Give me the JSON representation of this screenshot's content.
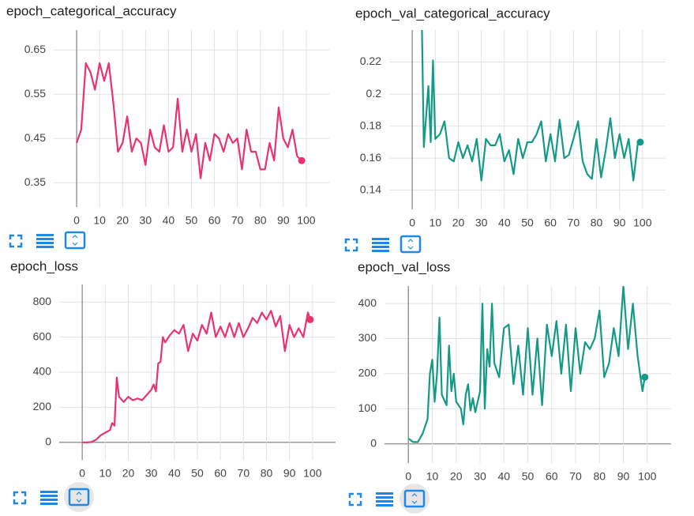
{
  "chart_data": [
    {
      "type": "line",
      "title": "epoch_categorical_accuracy",
      "xlim": [
        -10,
        110
      ],
      "xticks": [
        0,
        10,
        20,
        30,
        40,
        50,
        60,
        70,
        80,
        90,
        100
      ],
      "ylim": [
        0.295,
        0.695
      ],
      "yticks": [
        0.35,
        0.45,
        0.55,
        0.65
      ],
      "grid": true,
      "x": [
        0,
        2,
        4,
        6,
        8,
        10,
        12,
        14,
        16,
        18,
        20,
        22,
        24,
        26,
        28,
        30,
        32,
        34,
        36,
        38,
        40,
        42,
        44,
        46,
        48,
        50,
        52,
        54,
        56,
        58,
        60,
        62,
        64,
        66,
        68,
        70,
        72,
        74,
        76,
        78,
        80,
        82,
        84,
        86,
        88,
        90,
        92,
        94,
        96,
        98
      ],
      "series": [
        {
          "name": "epoch_categorical_accuracy",
          "color": "#e8336d",
          "values": [
            0.44,
            0.47,
            0.62,
            0.6,
            0.56,
            0.62,
            0.58,
            0.62,
            0.53,
            0.42,
            0.44,
            0.5,
            0.42,
            0.45,
            0.44,
            0.39,
            0.47,
            0.43,
            0.42,
            0.48,
            0.42,
            0.43,
            0.54,
            0.42,
            0.47,
            0.42,
            0.46,
            0.36,
            0.44,
            0.4,
            0.46,
            0.45,
            0.42,
            0.46,
            0.44,
            0.45,
            0.38,
            0.47,
            0.42,
            0.42,
            0.38,
            0.38,
            0.44,
            0.4,
            0.52,
            0.45,
            0.43,
            0.47,
            0.41,
            0.4
          ]
        }
      ]
    },
    {
      "type": "line",
      "title": "epoch_val_categorical_accuracy",
      "xlim": [
        -10,
        110
      ],
      "xticks": [
        0,
        10,
        20,
        30,
        40,
        50,
        60,
        70,
        80,
        90,
        100
      ],
      "ylim": [
        0.128,
        0.24
      ],
      "yticks": [
        0.14,
        0.16,
        0.18,
        0.2,
        0.22
      ],
      "grid": true,
      "x": [
        4,
        5,
        7,
        8,
        9,
        10,
        12,
        14,
        16,
        18,
        20,
        22,
        24,
        26,
        28,
        30,
        32,
        34,
        36,
        38,
        40,
        42,
        44,
        46,
        48,
        50,
        52,
        54,
        56,
        58,
        60,
        62,
        64,
        66,
        68,
        70,
        72,
        74,
        76,
        78,
        80,
        82,
        84,
        86,
        88,
        90,
        92,
        94,
        96,
        98,
        99
      ],
      "series": [
        {
          "name": "epoch_val_categorical_accuracy",
          "color": "#139a86",
          "values": [
            0.26,
            0.167,
            0.205,
            0.17,
            0.221,
            0.172,
            0.175,
            0.183,
            0.16,
            0.158,
            0.17,
            0.16,
            0.168,
            0.158,
            0.172,
            0.146,
            0.172,
            0.168,
            0.168,
            0.175,
            0.158,
            0.165,
            0.15,
            0.172,
            0.16,
            0.17,
            0.17,
            0.175,
            0.183,
            0.158,
            0.175,
            0.158,
            0.184,
            0.16,
            0.162,
            0.172,
            0.183,
            0.158,
            0.15,
            0.147,
            0.172,
            0.148,
            0.165,
            0.185,
            0.16,
            0.175,
            0.16,
            0.172,
            0.146,
            0.17,
            0.17
          ]
        }
      ]
    },
    {
      "type": "line",
      "title": "epoch_loss",
      "xlim": [
        -10,
        110
      ],
      "xticks": [
        0,
        10,
        20,
        30,
        40,
        50,
        60,
        70,
        80,
        90,
        100
      ],
      "ylim": [
        -100,
        900
      ],
      "yticks": [
        0,
        200,
        400,
        600,
        800
      ],
      "grid": true,
      "x": [
        0,
        2,
        4,
        6,
        8,
        10,
        12,
        13,
        14,
        15,
        16,
        18,
        20,
        22,
        24,
        26,
        28,
        30,
        31,
        32,
        33,
        34,
        35,
        36,
        38,
        40,
        42,
        44,
        46,
        48,
        50,
        52,
        54,
        56,
        58,
        60,
        62,
        64,
        66,
        68,
        70,
        72,
        74,
        76,
        78,
        80,
        82,
        84,
        86,
        88,
        90,
        92,
        94,
        96,
        98,
        99
      ],
      "series": [
        {
          "name": "epoch_loss",
          "color": "#e8336d",
          "values": [
            0,
            0,
            2,
            15,
            40,
            55,
            70,
            110,
            95,
            370,
            260,
            230,
            260,
            240,
            250,
            240,
            270,
            300,
            330,
            290,
            450,
            460,
            600,
            570,
            610,
            640,
            620,
            670,
            520,
            620,
            580,
            670,
            620,
            740,
            600,
            660,
            600,
            680,
            600,
            680,
            600,
            650,
            710,
            680,
            740,
            700,
            750,
            660,
            720,
            520,
            670,
            600,
            650,
            600,
            740,
            700
          ]
        }
      ]
    },
    {
      "type": "line",
      "title": "epoch_val_loss",
      "xlim": [
        -10,
        110
      ],
      "xticks": [
        0,
        10,
        20,
        30,
        40,
        50,
        60,
        70,
        80,
        90,
        100
      ],
      "ylim": [
        -55,
        450
      ],
      "yticks": [
        0,
        100,
        200,
        300,
        400
      ],
      "grid": true,
      "x": [
        0,
        2,
        4,
        6,
        8,
        9,
        10,
        11,
        12,
        13,
        14,
        16,
        17,
        18,
        19,
        20,
        22,
        23,
        24,
        25,
        26,
        27,
        28,
        30,
        31,
        32,
        33,
        34,
        35,
        36,
        38,
        40,
        42,
        44,
        46,
        48,
        50,
        52,
        54,
        56,
        58,
        60,
        62,
        64,
        66,
        68,
        70,
        72,
        74,
        76,
        78,
        80,
        82,
        84,
        86,
        88,
        90,
        92,
        94,
        96,
        98,
        99
      ],
      "series": [
        {
          "name": "epoch_val_loss",
          "color": "#139a86",
          "values": [
            15,
            5,
            5,
            30,
            70,
            200,
            240,
            120,
            200,
            360,
            140,
            110,
            280,
            150,
            200,
            120,
            100,
            55,
            140,
            170,
            95,
            130,
            90,
            150,
            400,
            100,
            270,
            220,
            400,
            230,
            190,
            330,
            340,
            170,
            280,
            140,
            330,
            140,
            300,
            110,
            340,
            250,
            350,
            200,
            340,
            150,
            330,
            200,
            290,
            270,
            300,
            380,
            190,
            230,
            330,
            250,
            450,
            270,
            400,
            250,
            150,
            190
          ]
        }
      ]
    }
  ]
}
